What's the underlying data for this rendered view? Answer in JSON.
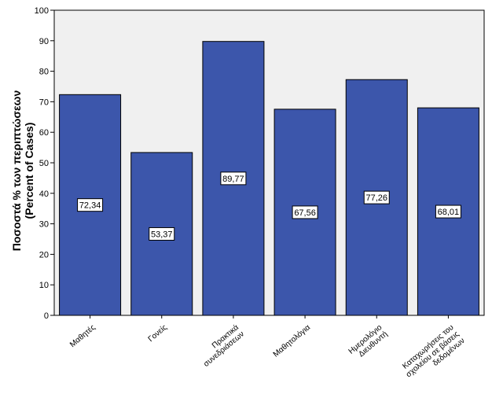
{
  "chart_data": {
    "type": "bar",
    "categories": [
      [
        "Μαθητές"
      ],
      [
        "Γονείς"
      ],
      [
        "Πρακτικά",
        "συνεδριάσεων"
      ],
      [
        "Μαθητολόγια"
      ],
      [
        "Ημερολόγιο",
        "Διευθυντή"
      ],
      [
        "Καταχωρήσεις του",
        "σχολείου σε βάσεις",
        "δεδομένων"
      ]
    ],
    "values": [
      72.34,
      53.37,
      89.77,
      67.56,
      77.26,
      68.01
    ],
    "data_labels": [
      "72,34",
      "53,37",
      "89,77",
      "67,56",
      "77,26",
      "68,01"
    ],
    "ylabel": [
      "Ποσοστά % των περιπτώσεων",
      "(Percent of Cases)"
    ],
    "xlabel": "",
    "title": "",
    "ylim": [
      0,
      100
    ],
    "yticks": [
      0,
      10,
      20,
      30,
      40,
      50,
      60,
      70,
      80,
      90,
      100
    ],
    "grid": false,
    "legend": "none",
    "colors": {
      "bar": "#3c56ab",
      "bar_stroke": "#000000",
      "plot_bg": "#f0f0f0"
    }
  }
}
